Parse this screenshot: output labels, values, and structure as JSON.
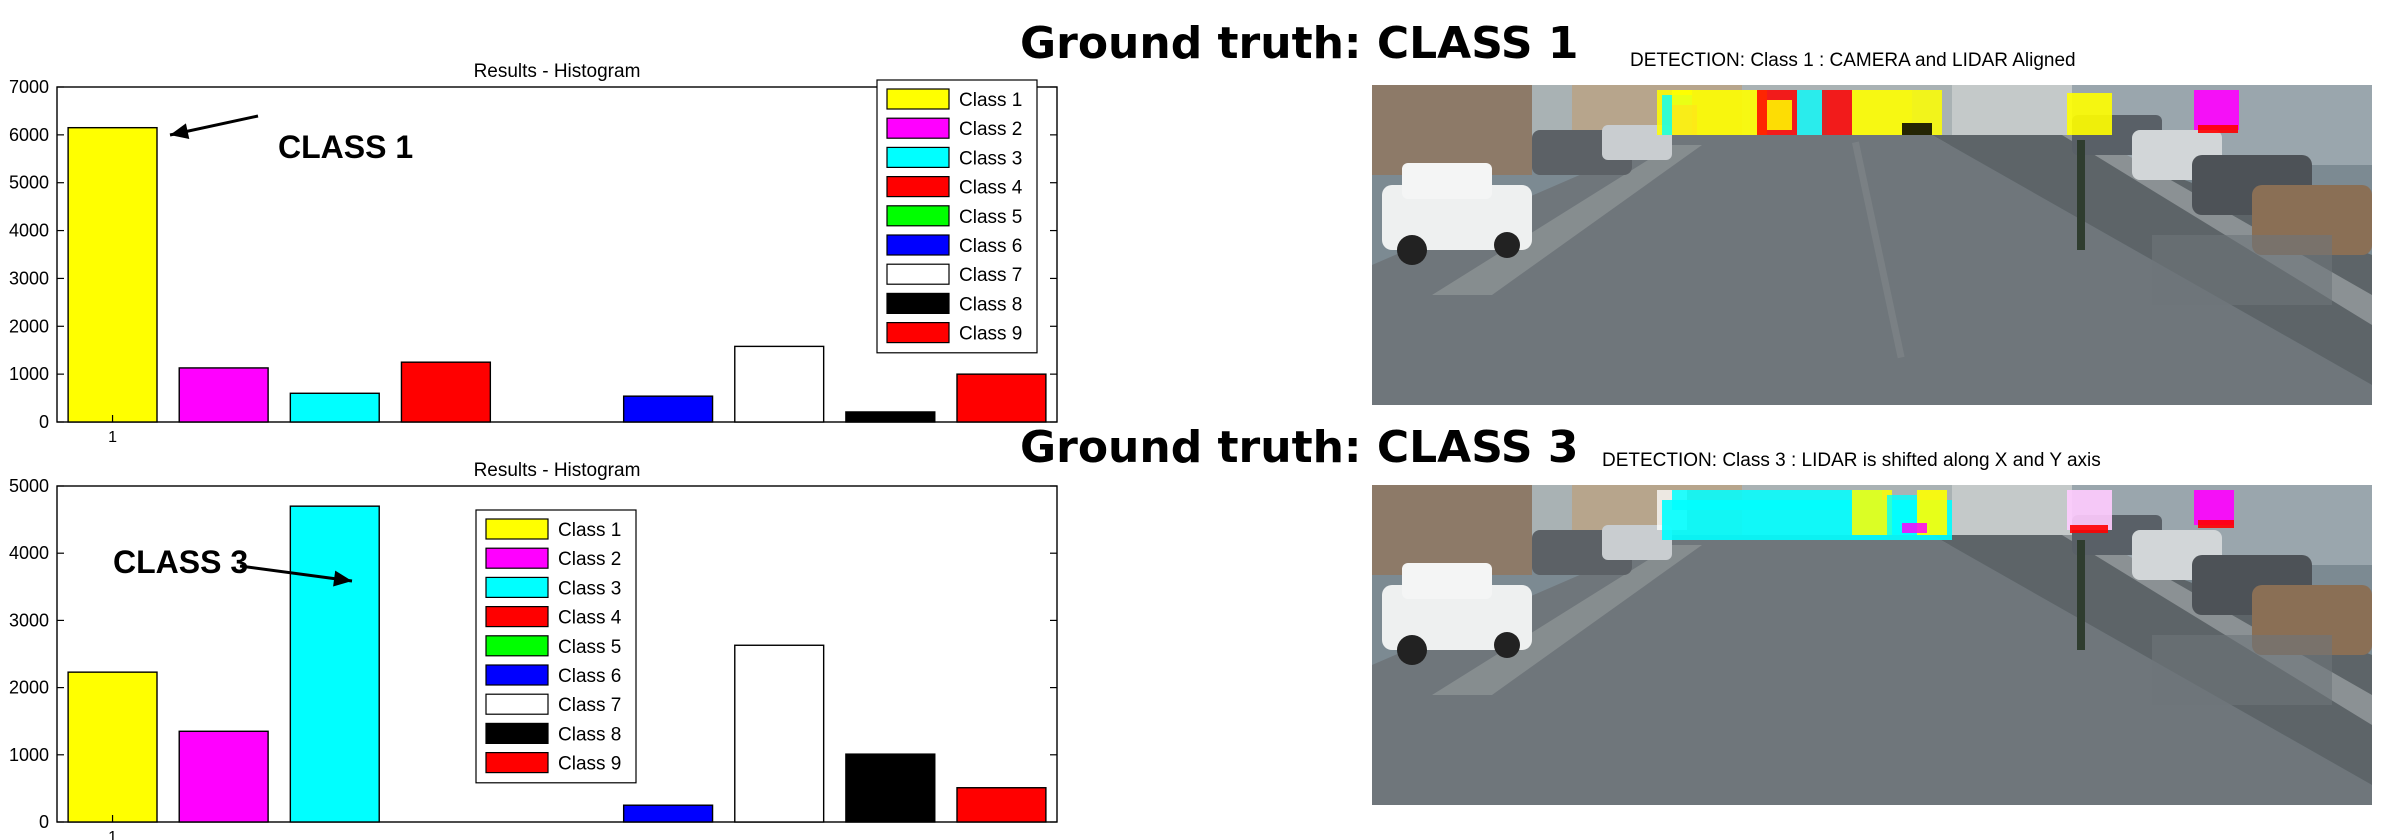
{
  "colors": {
    "class1": "#ffff00",
    "class2": "#ff00ff",
    "class3": "#00ffff",
    "class4": "#ff0000",
    "class5": "#00ff00",
    "class6": "#0000ff",
    "class7": "#ffffff",
    "class8": "#000000",
    "class9": "#ff0000"
  },
  "chart_data": [
    {
      "type": "bar",
      "title": "Results - Histogram",
      "xlabel": "",
      "ylabel": "",
      "ylim": [
        0,
        7000
      ],
      "yticks": [
        "0",
        "1000",
        "2000",
        "3000",
        "4000",
        "5000",
        "6000",
        "7000"
      ],
      "xtick": "1",
      "legend_position": "top-right",
      "categories": [
        "Class 1",
        "Class 2",
        "Class 3",
        "Class 4",
        "Class 5",
        "Class 6",
        "Class 7",
        "Class 8",
        "Class 9"
      ],
      "values": [
        6150,
        1130,
        600,
        1250,
        0,
        540,
        1580,
        210,
        1000
      ],
      "annotation": "CLASS 1"
    },
    {
      "type": "bar",
      "title": "Results - Histogram",
      "xlabel": "",
      "ylabel": "",
      "ylim": [
        0,
        5000
      ],
      "yticks": [
        "0",
        "1000",
        "2000",
        "3000",
        "4000",
        "5000"
      ],
      "xtick": "1",
      "legend_position": "top-center",
      "categories": [
        "Class 1",
        "Class 2",
        "Class 3",
        "Class 4",
        "Class 5",
        "Class 6",
        "Class 7",
        "Class 8",
        "Class 9"
      ],
      "values": [
        2230,
        1350,
        4700,
        0,
        0,
        250,
        2630,
        1010,
        510
      ],
      "annotation": "CLASS 3"
    }
  ],
  "panels": {
    "top": {
      "ground_truth": "Ground truth: CLASS 1",
      "detection_title": "DETECTION: Class 1 : CAMERA and LIDAR Aligned"
    },
    "bottom": {
      "ground_truth": "Ground truth: CLASS 3",
      "detection_title": "DETECTION: Class 3 : LIDAR is shifted along X and Y axis"
    }
  }
}
